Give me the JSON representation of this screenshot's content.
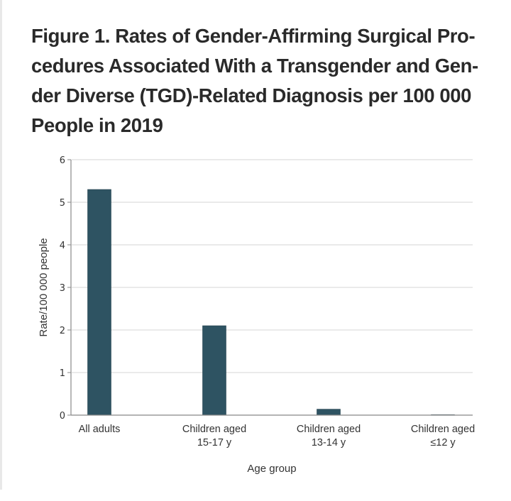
{
  "title_lines": [
    "Figure 1.  Rates of Gender-Affirming Surgical Pro-",
    "cedures Associated With a Transgender and Gen-",
    "der Diverse (TGD)-Related Diagnosis per 100 000",
    "People in 2019"
  ],
  "chart_data": {
    "type": "bar",
    "title": "Figure 1. Rates of Gender-Affirming Surgical Procedures Associated With a Transgender and Gender Diverse (TGD)-Related Diagnosis per 100 000 People in 2019",
    "xlabel": "Age group",
    "ylabel": "Rate/100 000 people",
    "categories": [
      [
        "All adults"
      ],
      [
        "Children aged",
        "15-17 y"
      ],
      [
        "Children aged",
        "13-14 y"
      ],
      [
        "Children aged",
        "≤12 y"
      ]
    ],
    "values": [
      5.3,
      2.1,
      0.14,
      0.01
    ],
    "ylim": [
      0,
      6
    ],
    "yticks": [
      0,
      1,
      2,
      3,
      4,
      5,
      6
    ],
    "grid": true,
    "bar_color": "#2e5362",
    "grid_color": "#e3e3e3",
    "axis_color": "#888888"
  }
}
